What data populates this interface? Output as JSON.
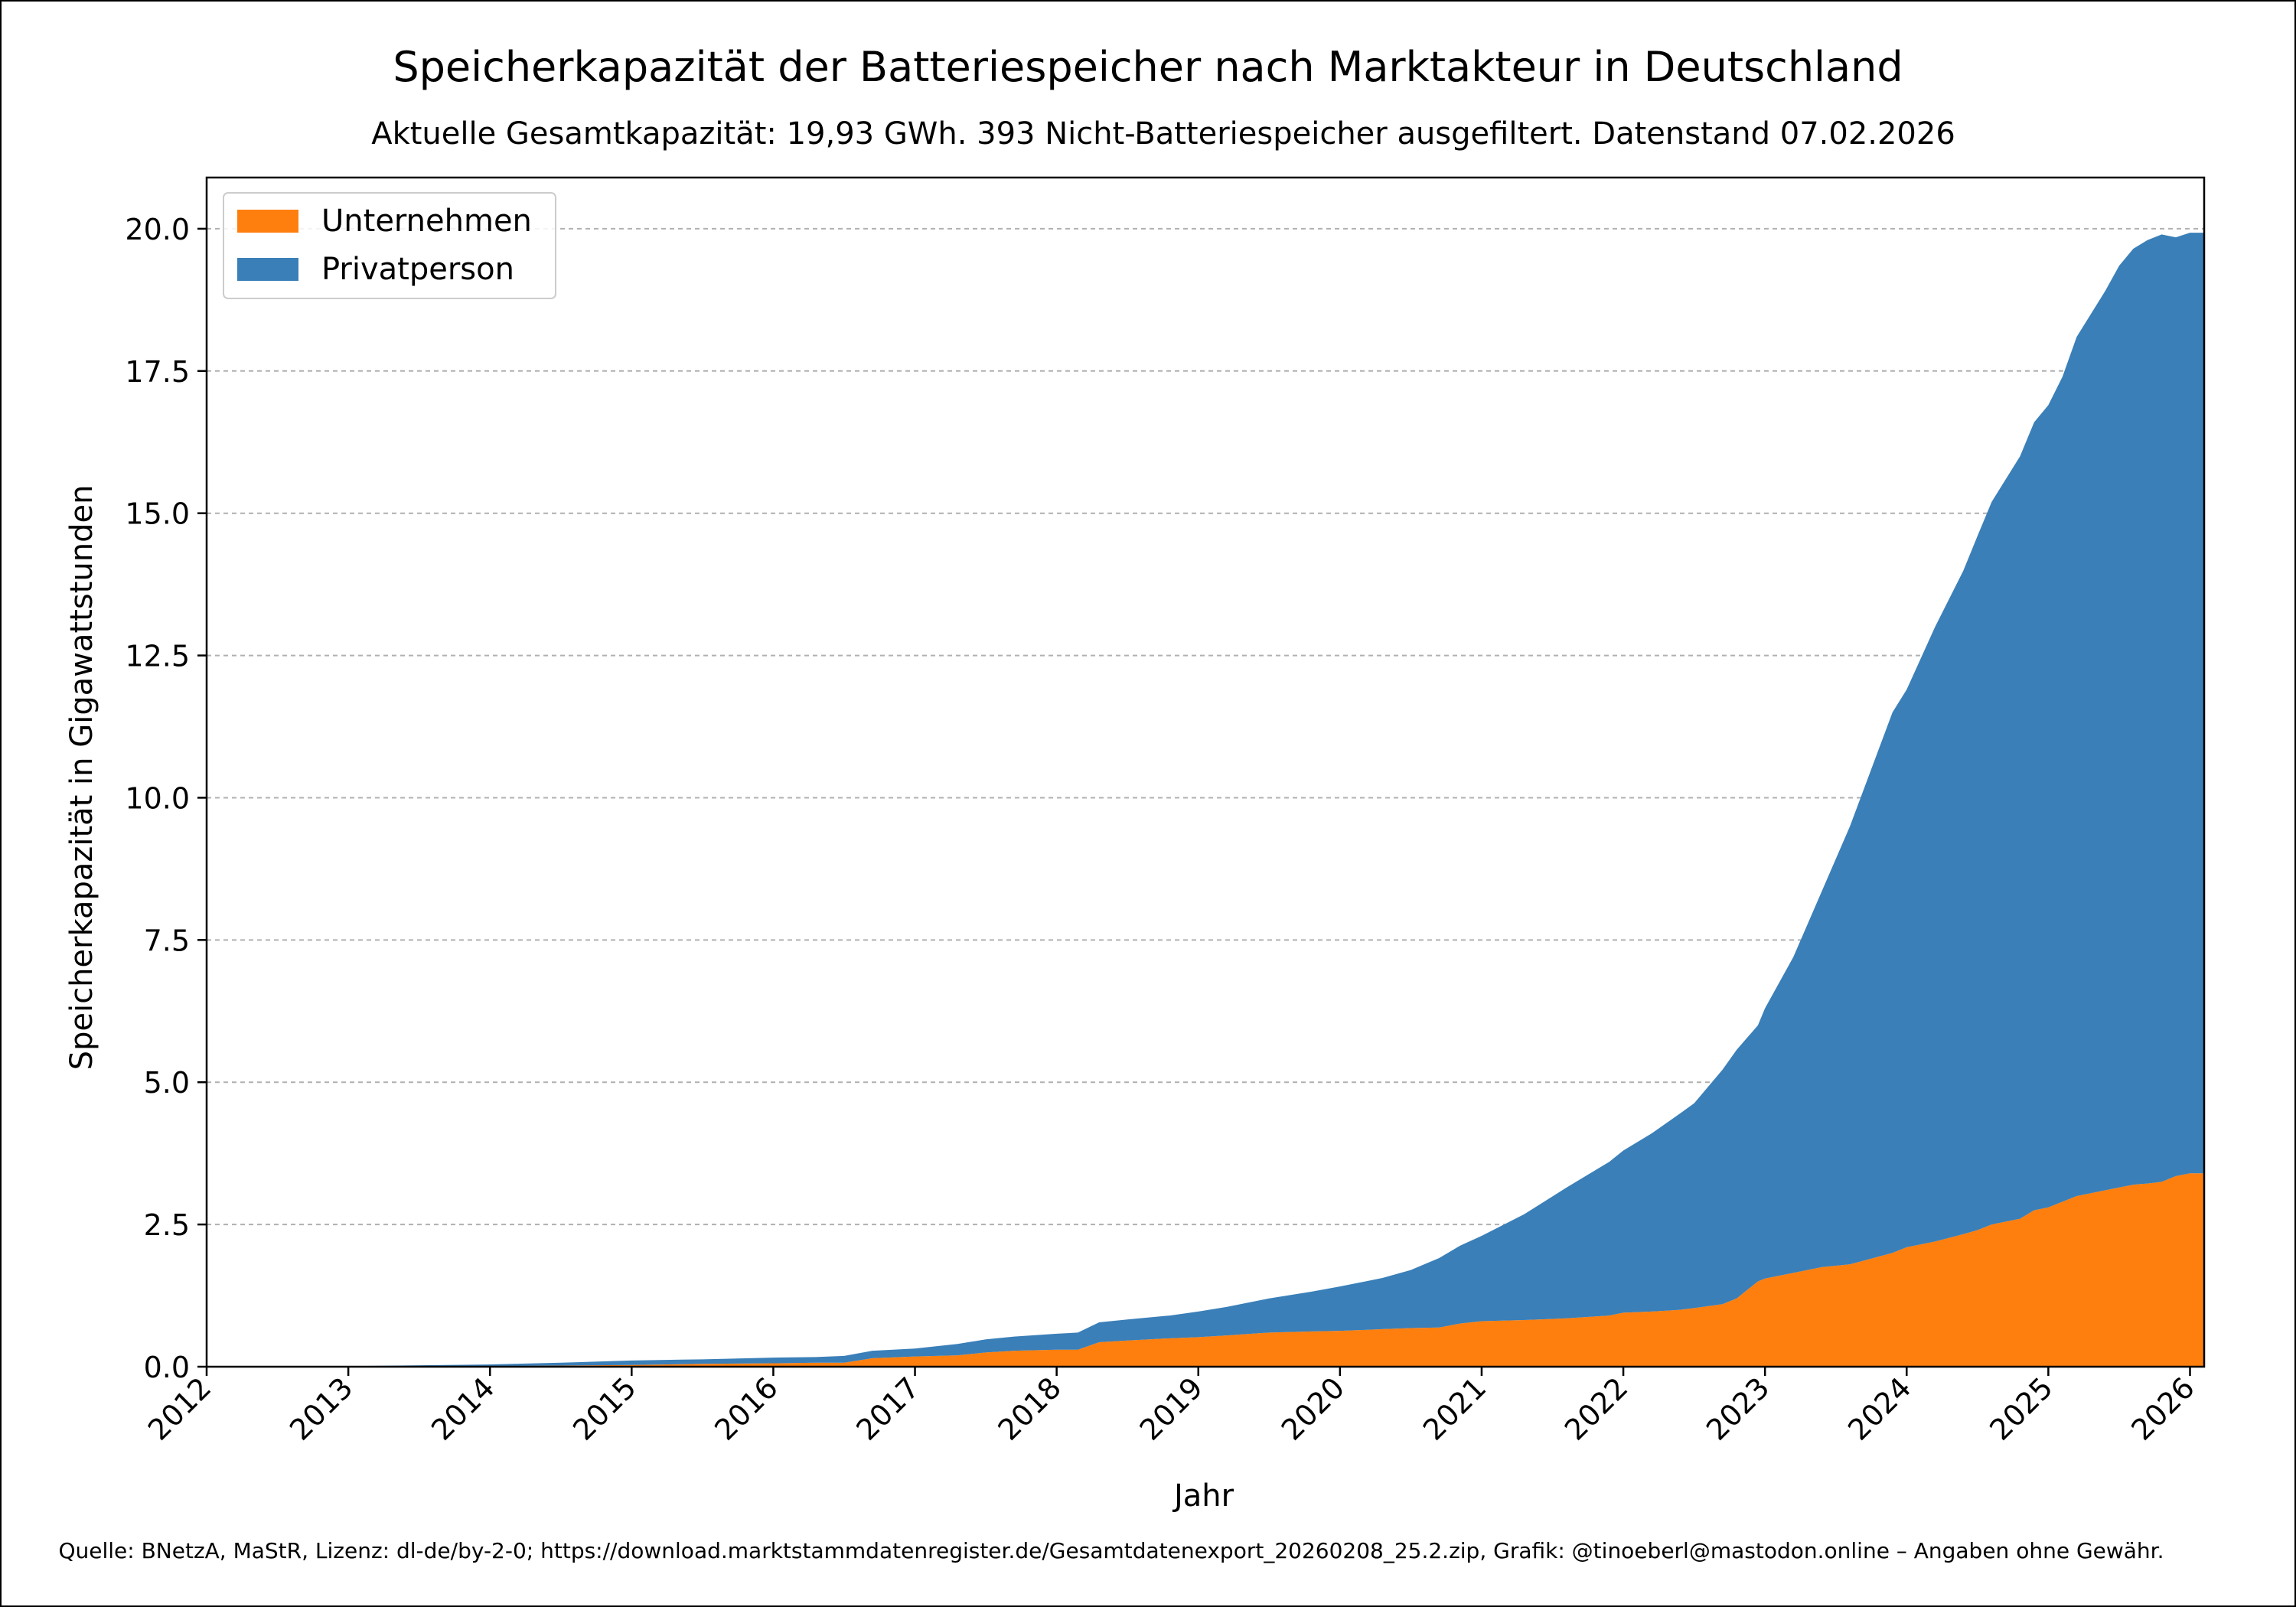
{
  "chart_data": {
    "type": "area",
    "stacked": true,
    "title": "Speicherkapazität der Batteriespeicher nach Marktakteur in Deutschland",
    "subtitle": "Aktuelle Gesamtkapazität: 19,93 GWh. 393 Nicht-Batteriespeicher ausgefiltert. Datenstand 07.02.2026",
    "xlabel": "Jahr",
    "ylabel": "Speicherkapazität in Gigawattstunden",
    "xlim": [
      2012,
      2026.1
    ],
    "ylim": [
      0,
      20.9
    ],
    "x_ticks": [
      {
        "value": 2012,
        "label": "2012"
      },
      {
        "value": 2013,
        "label": "2013"
      },
      {
        "value": 2014,
        "label": "2014"
      },
      {
        "value": 2015,
        "label": "2015"
      },
      {
        "value": 2016,
        "label": "2016"
      },
      {
        "value": 2017,
        "label": "2017"
      },
      {
        "value": 2018,
        "label": "2018"
      },
      {
        "value": 2019,
        "label": "2019"
      },
      {
        "value": 2020,
        "label": "2020"
      },
      {
        "value": 2021,
        "label": "2021"
      },
      {
        "value": 2022,
        "label": "2022"
      },
      {
        "value": 2023,
        "label": "2023"
      },
      {
        "value": 2024,
        "label": "2024"
      },
      {
        "value": 2025,
        "label": "2025"
      },
      {
        "value": 2026,
        "label": "2026"
      }
    ],
    "y_ticks": [
      {
        "value": 0,
        "label": "0.0"
      },
      {
        "value": 2.5,
        "label": "2.5"
      },
      {
        "value": 5,
        "label": "5.0"
      },
      {
        "value": 7.5,
        "label": "7.5"
      },
      {
        "value": 10,
        "label": "10.0"
      },
      {
        "value": 12.5,
        "label": "12.5"
      },
      {
        "value": 15,
        "label": "15.0"
      },
      {
        "value": 17.5,
        "label": "17.5"
      },
      {
        "value": 20,
        "label": "20.0"
      }
    ],
    "grid": "y-dashed",
    "legend_position": "top-left",
    "x": [
      2012.0,
      2013.0,
      2014.0,
      2014.5,
      2015.0,
      2015.5,
      2016.0,
      2016.3,
      2016.5,
      2016.7,
      2017.0,
      2017.3,
      2017.5,
      2017.7,
      2018.0,
      2018.15,
      2018.3,
      2018.5,
      2018.8,
      2019.0,
      2019.2,
      2019.5,
      2019.8,
      2020.0,
      2020.3,
      2020.5,
      2020.7,
      2020.85,
      2021.0,
      2021.3,
      2021.6,
      2021.9,
      2022.0,
      2022.2,
      2022.4,
      2022.5,
      2022.7,
      2022.8,
      2022.95,
      2023.0,
      2023.2,
      2023.4,
      2023.6,
      2023.75,
      2023.9,
      2024.0,
      2024.2,
      2024.4,
      2024.5,
      2024.6,
      2024.8,
      2024.9,
      2025.0,
      2025.1,
      2025.2,
      2025.4,
      2025.5,
      2025.6,
      2025.7,
      2025.8,
      2025.9,
      2026.0,
      2026.1
    ],
    "series": [
      {
        "name": "Unternehmen",
        "color": "#ff7f0e",
        "values": [
          0.0,
          0.0,
          0.01,
          0.02,
          0.03,
          0.05,
          0.06,
          0.07,
          0.07,
          0.15,
          0.18,
          0.2,
          0.25,
          0.28,
          0.3,
          0.3,
          0.43,
          0.46,
          0.5,
          0.52,
          0.55,
          0.6,
          0.62,
          0.63,
          0.66,
          0.68,
          0.69,
          0.76,
          0.8,
          0.82,
          0.85,
          0.9,
          0.95,
          0.97,
          1.0,
          1.03,
          1.1,
          1.2,
          1.5,
          1.55,
          1.65,
          1.75,
          1.8,
          1.9,
          2.0,
          2.1,
          2.2,
          2.33,
          2.4,
          2.5,
          2.6,
          2.75,
          2.8,
          2.9,
          3.0,
          3.1,
          3.15,
          3.2,
          3.22,
          3.25,
          3.35,
          3.4,
          3.4
        ]
      },
      {
        "name": "Privatperson",
        "color": "#3a7fb8",
        "values": [
          0.0,
          0.01,
          0.03,
          0.05,
          0.08,
          0.08,
          0.1,
          0.1,
          0.12,
          0.13,
          0.14,
          0.2,
          0.23,
          0.25,
          0.28,
          0.3,
          0.35,
          0.37,
          0.4,
          0.45,
          0.5,
          0.6,
          0.7,
          0.78,
          0.9,
          1.02,
          1.22,
          1.37,
          1.5,
          1.86,
          2.3,
          2.7,
          2.85,
          3.13,
          3.45,
          3.6,
          4.12,
          4.37,
          4.5,
          4.75,
          5.55,
          6.6,
          7.7,
          8.6,
          9.5,
          9.8,
          10.8,
          11.66,
          12.2,
          12.7,
          13.4,
          13.85,
          14.1,
          14.5,
          15.1,
          15.8,
          16.2,
          16.45,
          16.58,
          16.65,
          16.5,
          16.53,
          16.53
        ]
      }
    ]
  },
  "footer": {
    "source": "Quelle: BNetzA, MaStR, Lizenz: dl-de/by-2-0; https://download.marktstammdatenregister.de/Gesamtdatenexport_20260208_25.2.zip, Grafik: @tinoeberl@mastodon.online – Angaben ohne Gewähr."
  }
}
